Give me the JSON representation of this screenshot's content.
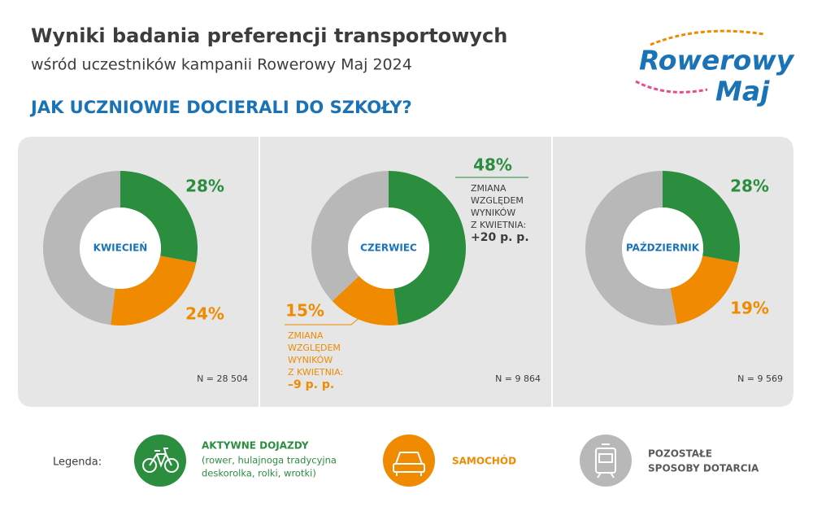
{
  "header": {
    "title": "Wyniki badania preferencji transportowych",
    "subtitle": "wśród uczestników kampanii Rowerowy Maj 2024",
    "question": "JAK UCZNIOWIE DOCIERALI DO SZKOŁY?",
    "logo": [
      "Rowerowy",
      "Maj"
    ]
  },
  "chart_data": [
    {
      "type": "donut",
      "center_label": "KWIECIEŃ",
      "values": [
        28,
        24,
        48
      ],
      "value_labels": [
        "28%",
        "24%",
        null
      ],
      "n_label": "N = 28 504"
    },
    {
      "type": "donut",
      "center_label": "CZERWIEC",
      "values": [
        48,
        15,
        37
      ],
      "value_labels": [
        "48%",
        "15%",
        null
      ],
      "n_label": "N = 9 864",
      "annotations": [
        {
          "lines": [
            "ZMIANA",
            "WZGLĘDEM",
            "WYNIKÓW",
            "Z KWIETNIA:"
          ],
          "change": "+20 p. p."
        },
        {
          "lines": [
            "ZMIANA",
            "WZGLĘDEM",
            "WYNIKÓW",
            "Z KWIETNIA:"
          ],
          "change": "–9 p. p."
        }
      ]
    },
    {
      "type": "donut",
      "center_label": "PAŹDZIERNIK",
      "values": [
        28,
        19,
        53
      ],
      "value_labels": [
        "28%",
        "19%",
        null
      ],
      "n_label": "N = 9 569"
    }
  ],
  "legend": {
    "label": "Legenda:",
    "items": [
      {
        "name": [
          "AKTYWNE DOJAZDY"
        ],
        "note": [
          "(rower, hulajnoga tradycyjna",
          "deskorolka, rolki, wrotki)"
        ],
        "color": "#2b8d3e"
      },
      {
        "name": [
          "SAMOCHÓD"
        ],
        "color": "#f08a00"
      },
      {
        "name": [
          "POZOSTAŁE",
          "SPOSOBY DOTARCIA"
        ],
        "color": "#b8b8b8"
      }
    ]
  }
}
